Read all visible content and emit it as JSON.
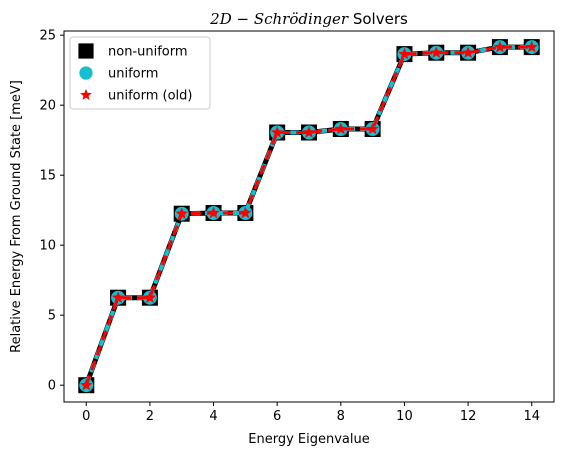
{
  "chart_data": {
    "type": "line",
    "title": "2D − Schrödinger Solvers",
    "title_math": "2D − Schrödinger",
    "title_suffix": " Solvers",
    "xlabel": "Energy Eigenvalue",
    "ylabel": "Relative Energy From Ground State [meV]",
    "xlim": [
      -0.7,
      14.7
    ],
    "ylim": [
      -1.2,
      25.3
    ],
    "xticks": [
      0,
      2,
      4,
      6,
      8,
      10,
      12,
      14
    ],
    "yticks": [
      0,
      5,
      10,
      15,
      20,
      25
    ],
    "x": [
      0,
      1,
      2,
      3,
      4,
      5,
      6,
      7,
      8,
      9,
      10,
      11,
      12,
      13,
      14
    ],
    "legend_position": "upper-left",
    "series": [
      {
        "name": "non-uniform",
        "marker": "square",
        "color": "#000000",
        "values": [
          0.0,
          6.25,
          6.25,
          12.25,
          12.3,
          12.3,
          18.05,
          18.05,
          18.3,
          18.3,
          23.65,
          23.75,
          23.75,
          24.15,
          24.15
        ]
      },
      {
        "name": "uniform",
        "marker": "circle",
        "color": "#17becf",
        "values": [
          0.0,
          6.25,
          6.25,
          12.25,
          12.3,
          12.3,
          18.05,
          18.05,
          18.3,
          18.3,
          23.65,
          23.75,
          23.75,
          24.15,
          24.15
        ]
      },
      {
        "name": "uniform (old)",
        "marker": "star",
        "color": "#ff0000",
        "values": [
          0.0,
          6.25,
          6.25,
          12.25,
          12.3,
          12.3,
          18.05,
          18.05,
          18.3,
          18.3,
          23.65,
          23.75,
          23.75,
          24.15,
          24.15
        ]
      }
    ]
  }
}
